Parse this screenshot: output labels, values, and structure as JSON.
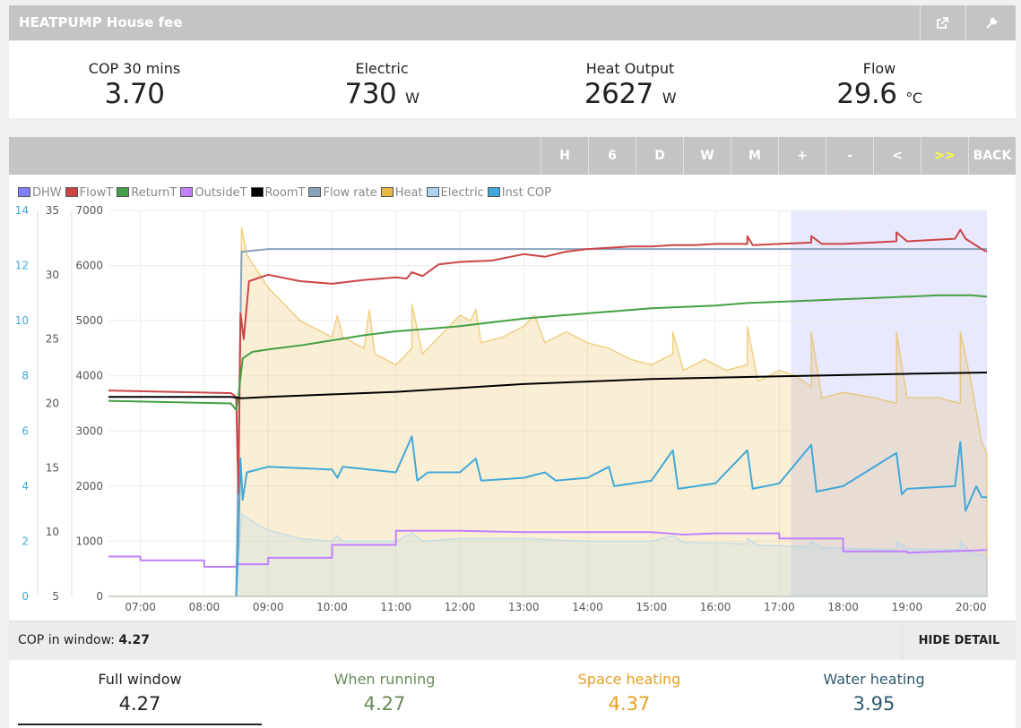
{
  "app": {
    "title": "HEATPUMP House fee"
  },
  "titlebar": {
    "share_icon": "external-link-icon",
    "settings_icon": "wrench-icon"
  },
  "stats": [
    {
      "label": "COP 30 mins",
      "value": "3.70",
      "unit": ""
    },
    {
      "label": "Electric",
      "value": "730",
      "unit": "W"
    },
    {
      "label": "Heat Output",
      "value": "2627",
      "unit": "W"
    },
    {
      "label": "Flow",
      "value": "29.6",
      "unit": "°C"
    }
  ],
  "toolbar": [
    "H",
    "6",
    "D",
    "W",
    "M",
    "+",
    "-",
    "<",
    ">>",
    "BACK"
  ],
  "legend": [
    {
      "name": "DHW",
      "color": "#8080ff"
    },
    {
      "name": "FlowT",
      "color": "#cc4444"
    },
    {
      "name": "ReturnT",
      "color": "#44a044"
    },
    {
      "name": "OutsideT",
      "color": "#c080ff"
    },
    {
      "name": "RoomT",
      "color": "#000000"
    },
    {
      "name": "Flow rate",
      "color": "#8aa2bc"
    },
    {
      "name": "Heat",
      "color": "#e8b840"
    },
    {
      "name": "Electric",
      "color": "#aad4f0"
    },
    {
      "name": "Inst COP",
      "color": "#40a8d8"
    }
  ],
  "chart_data": {
    "type": "line",
    "x_ticks": [
      "07:00",
      "08:00",
      "09:00",
      "10:00",
      "11:00",
      "12:00",
      "13:00",
      "14:00",
      "15:00",
      "16:00",
      "17:00",
      "18:00",
      "19:00",
      "20:00"
    ],
    "y_axes": [
      {
        "name": "cop",
        "range": [
          0,
          14
        ],
        "ticks": [
          0,
          2,
          4,
          6,
          8,
          10,
          12,
          14
        ],
        "color": "#40a8d8"
      },
      {
        "name": "temperature",
        "range": [
          5,
          35
        ],
        "ticks": [
          5,
          10,
          15,
          20,
          25,
          30,
          35
        ]
      },
      {
        "name": "power",
        "range": [
          0,
          7000
        ],
        "ticks": [
          0,
          1000,
          2000,
          3000,
          4000,
          5000,
          6000,
          7000
        ]
      }
    ],
    "x_range": [
      "06:30",
      "20:15"
    ],
    "highlight": {
      "from": "17:11",
      "to": "20:15",
      "color": "#e8e8ff"
    },
    "series": [
      {
        "name": "Heat",
        "axis": "power",
        "fill": true,
        "color": "#e8b840",
        "points": [
          [
            "06:30",
            0
          ],
          [
            "08:30",
            0
          ],
          [
            "08:35",
            6700
          ],
          [
            "08:40",
            6200
          ],
          [
            "09:00",
            5600
          ],
          [
            "09:30",
            5000
          ],
          [
            "10:00",
            4700
          ],
          [
            "10:05",
            5100
          ],
          [
            "10:10",
            4700
          ],
          [
            "10:30",
            4500
          ],
          [
            "10:35",
            5200
          ],
          [
            "10:40",
            4400
          ],
          [
            "11:00",
            4200
          ],
          [
            "11:15",
            4500
          ],
          [
            "11:15",
            5300
          ],
          [
            "11:25",
            4400
          ],
          [
            "11:45",
            4800
          ],
          [
            "12:00",
            5100
          ],
          [
            "12:10",
            5000
          ],
          [
            "12:15",
            5200
          ],
          [
            "12:20",
            4600
          ],
          [
            "12:40",
            4700
          ],
          [
            "13:00",
            4900
          ],
          [
            "13:10",
            5100
          ],
          [
            "13:20",
            4600
          ],
          [
            "13:40",
            4800
          ],
          [
            "14:00",
            4600
          ],
          [
            "14:20",
            4500
          ],
          [
            "14:40",
            4300
          ],
          [
            "15:00",
            4200
          ],
          [
            "15:20",
            4400
          ],
          [
            "15:20",
            4800
          ],
          [
            "15:30",
            4100
          ],
          [
            "15:50",
            4300
          ],
          [
            "16:10",
            4100
          ],
          [
            "16:30",
            4200
          ],
          [
            "16:30",
            4900
          ],
          [
            "16:40",
            3900
          ],
          [
            "17:00",
            4100
          ],
          [
            "17:15",
            4000
          ],
          [
            "17:30",
            3800
          ],
          [
            "17:30",
            4800
          ],
          [
            "17:40",
            3600
          ],
          [
            "18:00",
            3700
          ],
          [
            "18:30",
            3600
          ],
          [
            "18:50",
            3500
          ],
          [
            "18:50",
            4800
          ],
          [
            "19:00",
            3600
          ],
          [
            "19:30",
            3600
          ],
          [
            "19:50",
            3500
          ],
          [
            "19:50",
            4800
          ],
          [
            "20:00",
            3900
          ],
          [
            "20:10",
            2800
          ],
          [
            "20:15",
            2600
          ]
        ]
      },
      {
        "name": "Electric",
        "axis": "power",
        "fill": true,
        "color": "#aad4f0",
        "points": [
          [
            "06:30",
            0
          ],
          [
            "08:30",
            0
          ],
          [
            "08:35",
            1500
          ],
          [
            "08:50",
            1300
          ],
          [
            "09:00",
            1200
          ],
          [
            "09:30",
            1050
          ],
          [
            "10:00",
            1000
          ],
          [
            "10:05",
            1100
          ],
          [
            "10:10",
            1000
          ],
          [
            "11:00",
            1000
          ],
          [
            "11:15",
            1150
          ],
          [
            "11:25",
            1000
          ],
          [
            "12:00",
            1050
          ],
          [
            "13:00",
            1050
          ],
          [
            "14:00",
            1000
          ],
          [
            "15:00",
            1000
          ],
          [
            "15:20",
            1100
          ],
          [
            "15:30",
            980
          ],
          [
            "16:30",
            950
          ],
          [
            "16:30",
            1050
          ],
          [
            "16:40",
            930
          ],
          [
            "17:30",
            900
          ],
          [
            "17:30",
            1000
          ],
          [
            "17:40",
            880
          ],
          [
            "18:50",
            850
          ],
          [
            "18:50",
            1000
          ],
          [
            "19:00",
            860
          ],
          [
            "19:50",
            850
          ],
          [
            "19:50",
            1000
          ],
          [
            "20:00",
            800
          ],
          [
            "20:15",
            720
          ]
        ]
      },
      {
        "name": "Flow rate",
        "axis": "power",
        "fill": false,
        "color": "#8aa2bc",
        "points": [
          [
            "08:30",
            0
          ],
          [
            "08:33",
            3800
          ],
          [
            "08:35",
            6250
          ],
          [
            "09:00",
            6300
          ],
          [
            "12:00",
            6300
          ],
          [
            "16:00",
            6300
          ],
          [
            "20:15",
            6300
          ]
        ]
      },
      {
        "name": "FlowT",
        "axis": "temperature",
        "fill": false,
        "color": "#cc4444",
        "points": [
          [
            "06:30",
            21.0
          ],
          [
            "08:25",
            20.8
          ],
          [
            "08:30",
            20.5
          ],
          [
            "08:32",
            13.0
          ],
          [
            "08:34",
            27.0
          ],
          [
            "08:37",
            25.0
          ],
          [
            "08:42",
            29.5
          ],
          [
            "09:00",
            30.0
          ],
          [
            "09:30",
            29.5
          ],
          [
            "10:00",
            29.3
          ],
          [
            "10:30",
            29.6
          ],
          [
            "11:00",
            29.8
          ],
          [
            "11:10",
            29.7
          ],
          [
            "11:15",
            30.2
          ],
          [
            "11:25",
            29.9
          ],
          [
            "11:40",
            30.8
          ],
          [
            "12:00",
            31.0
          ],
          [
            "12:30",
            31.1
          ],
          [
            "13:00",
            31.6
          ],
          [
            "13:20",
            31.4
          ],
          [
            "13:40",
            31.8
          ],
          [
            "14:00",
            32.0
          ],
          [
            "14:20",
            32.1
          ],
          [
            "14:40",
            32.2
          ],
          [
            "15:00",
            32.2
          ],
          [
            "15:20",
            32.3
          ],
          [
            "15:40",
            32.3
          ],
          [
            "16:00",
            32.4
          ],
          [
            "16:30",
            32.4
          ],
          [
            "16:30",
            33.0
          ],
          [
            "16:35",
            32.3
          ],
          [
            "17:00",
            32.4
          ],
          [
            "17:30",
            32.5
          ],
          [
            "17:30",
            33.0
          ],
          [
            "17:40",
            32.4
          ],
          [
            "18:00",
            32.4
          ],
          [
            "18:50",
            32.6
          ],
          [
            "18:50",
            33.3
          ],
          [
            "19:00",
            32.6
          ],
          [
            "19:45",
            32.8
          ],
          [
            "19:50",
            33.5
          ],
          [
            "19:55",
            32.8
          ],
          [
            "20:10",
            32.0
          ],
          [
            "20:15",
            31.8
          ]
        ]
      },
      {
        "name": "ReturnT",
        "axis": "temperature",
        "fill": false,
        "color": "#44a044",
        "points": [
          [
            "06:30",
            20.2
          ],
          [
            "08:25",
            20.0
          ],
          [
            "08:30",
            19.5
          ],
          [
            "08:32",
            20.5
          ],
          [
            "08:36",
            23.5
          ],
          [
            "08:45",
            24.0
          ],
          [
            "09:00",
            24.2
          ],
          [
            "09:30",
            24.5
          ],
          [
            "10:00",
            24.9
          ],
          [
            "10:30",
            25.3
          ],
          [
            "11:00",
            25.6
          ],
          [
            "11:30",
            25.8
          ],
          [
            "12:00",
            26.0
          ],
          [
            "12:30",
            26.3
          ],
          [
            "13:00",
            26.6
          ],
          [
            "13:30",
            26.8
          ],
          [
            "14:00",
            27.0
          ],
          [
            "14:30",
            27.2
          ],
          [
            "15:00",
            27.4
          ],
          [
            "15:30",
            27.5
          ],
          [
            "16:00",
            27.6
          ],
          [
            "16:30",
            27.8
          ],
          [
            "17:00",
            27.9
          ],
          [
            "17:30",
            28.0
          ],
          [
            "18:00",
            28.1
          ],
          [
            "18:30",
            28.2
          ],
          [
            "19:00",
            28.3
          ],
          [
            "19:30",
            28.4
          ],
          [
            "20:00",
            28.4
          ],
          [
            "20:15",
            28.3
          ]
        ]
      },
      {
        "name": "RoomT",
        "axis": "temperature",
        "fill": false,
        "color": "#000000",
        "points": [
          [
            "06:30",
            20.5
          ],
          [
            "08:25",
            20.5
          ],
          [
            "08:35",
            20.4
          ],
          [
            "09:00",
            20.5
          ],
          [
            "10:00",
            20.7
          ],
          [
            "11:00",
            20.9
          ],
          [
            "12:00",
            21.2
          ],
          [
            "13:00",
            21.5
          ],
          [
            "14:00",
            21.7
          ],
          [
            "15:00",
            21.9
          ],
          [
            "16:00",
            22.0
          ],
          [
            "17:00",
            22.1
          ],
          [
            "18:00",
            22.2
          ],
          [
            "19:00",
            22.3
          ],
          [
            "20:15",
            22.4
          ]
        ]
      },
      {
        "name": "OutsideT",
        "axis": "temperature",
        "fill": false,
        "color": "#c080ff",
        "points": [
          [
            "06:30",
            8.1
          ],
          [
            "07:00",
            8.1
          ],
          [
            "07:00",
            7.8
          ],
          [
            "08:00",
            7.8
          ],
          [
            "08:00",
            7.3
          ],
          [
            "08:30",
            7.3
          ],
          [
            "08:30",
            7.5
          ],
          [
            "09:00",
            7.5
          ],
          [
            "09:00",
            8.0
          ],
          [
            "10:00",
            8.0
          ],
          [
            "10:00",
            9.0
          ],
          [
            "11:00",
            9.0
          ],
          [
            "11:00",
            10.1
          ],
          [
            "12:00",
            10.1
          ],
          [
            "13:00",
            10.0
          ],
          [
            "14:00",
            10.0
          ],
          [
            "15:00",
            10.0
          ],
          [
            "15:30",
            9.8
          ],
          [
            "16:00",
            9.9
          ],
          [
            "17:00",
            9.9
          ],
          [
            "17:00",
            9.5
          ],
          [
            "18:00",
            9.5
          ],
          [
            "18:00",
            8.5
          ],
          [
            "19:00",
            8.5
          ],
          [
            "19:00",
            8.4
          ],
          [
            "20:15",
            8.6
          ]
        ]
      },
      {
        "name": "Inst COP",
        "axis": "cop",
        "fill": false,
        "color": "#40a8d8",
        "points": [
          [
            "08:30",
            0
          ],
          [
            "08:32",
            2.0
          ],
          [
            "08:34",
            5.0
          ],
          [
            "08:36",
            3.5
          ],
          [
            "08:40",
            4.5
          ],
          [
            "09:00",
            4.7
          ],
          [
            "10:00",
            4.6
          ],
          [
            "10:05",
            4.3
          ],
          [
            "10:10",
            4.7
          ],
          [
            "11:00",
            4.5
          ],
          [
            "11:15",
            5.8
          ],
          [
            "11:20",
            4.2
          ],
          [
            "11:30",
            4.5
          ],
          [
            "12:00",
            4.5
          ],
          [
            "12:15",
            5.0
          ],
          [
            "12:20",
            4.2
          ],
          [
            "13:00",
            4.3
          ],
          [
            "13:20",
            4.5
          ],
          [
            "13:30",
            4.2
          ],
          [
            "14:00",
            4.3
          ],
          [
            "14:20",
            4.7
          ],
          [
            "14:25",
            4.0
          ],
          [
            "15:00",
            4.2
          ],
          [
            "15:20",
            5.3
          ],
          [
            "15:25",
            3.9
          ],
          [
            "16:00",
            4.1
          ],
          [
            "16:30",
            5.3
          ],
          [
            "16:35",
            3.9
          ],
          [
            "17:00",
            4.1
          ],
          [
            "17:30",
            5.5
          ],
          [
            "17:35",
            3.8
          ],
          [
            "18:00",
            4.0
          ],
          [
            "18:50",
            5.2
          ],
          [
            "18:55",
            3.7
          ],
          [
            "19:00",
            3.9
          ],
          [
            "19:45",
            4.0
          ],
          [
            "19:50",
            5.6
          ],
          [
            "19:55",
            3.1
          ],
          [
            "20:05",
            4.0
          ],
          [
            "20:10",
            3.6
          ],
          [
            "20:15",
            3.6
          ]
        ]
      }
    ]
  },
  "window_bar": {
    "label": "COP in window:",
    "value": "4.27",
    "hide_label": "HIDE DETAIL"
  },
  "cop_tabs": [
    {
      "label": "Full window",
      "value": "4.27",
      "color": "#222222"
    },
    {
      "label": "When running",
      "value": "4.27",
      "color": "#6a8a5a"
    },
    {
      "label": "Space heating",
      "value": "4.37",
      "color": "#e8a020"
    },
    {
      "label": "Water heating",
      "value": "3.95",
      "color": "#2e5a6e"
    }
  ]
}
